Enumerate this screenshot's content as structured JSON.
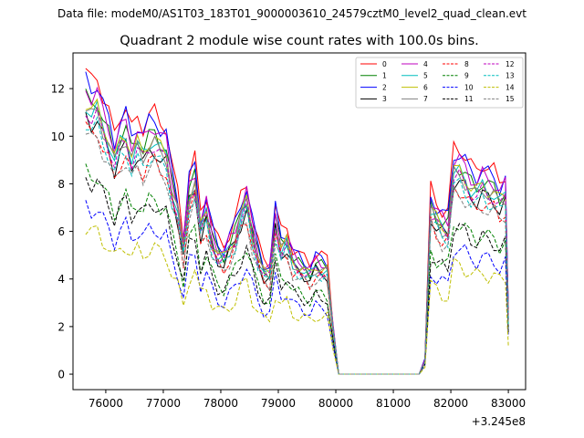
{
  "chart_data": {
    "type": "line",
    "suptitle": "Data file: modeM0/AS1T03_183T01_9000003610_24579cztM0_level2_quad_clean.evt",
    "title": "Quadrant 2 module wise count rates with 100.0s bins.",
    "xlabel": "",
    "ylabel": "",
    "x_offset_label": "+3.245e8",
    "xlim": [
      75430,
      83300
    ],
    "ylim": [
      -0.65,
      13.5
    ],
    "xticks": [
      76000,
      77000,
      78000,
      79000,
      80000,
      81000,
      82000,
      83000
    ],
    "xtick_labels": [
      "76000",
      "77000",
      "78000",
      "79000",
      "80000",
      "81000",
      "82000",
      "83000"
    ],
    "yticks": [
      0,
      2,
      4,
      6,
      8,
      10,
      12
    ],
    "ytick_labels": [
      "0",
      "2",
      "4",
      "6",
      "8",
      "10",
      "12"
    ],
    "grid": false,
    "legend_position": "top-right",
    "x": [
      75650,
      75750,
      75850,
      75950,
      76050,
      76150,
      76250,
      76350,
      76450,
      76550,
      76650,
      76750,
      76850,
      76950,
      77050,
      77150,
      77250,
      77350,
      77450,
      77550,
      77650,
      77750,
      77850,
      77950,
      78050,
      78150,
      78250,
      78350,
      78450,
      78550,
      78650,
      78750,
      78850,
      78950,
      79050,
      79150,
      79250,
      79350,
      79450,
      79550,
      79650,
      79750,
      79850,
      79950,
      80050,
      80150,
      80250,
      80350,
      80450,
      80550,
      80650,
      80750,
      80850,
      80950,
      81050,
      81150,
      81250,
      81350,
      81450,
      81550,
      81650,
      81750,
      81850,
      81950,
      82050,
      82150,
      82250,
      82350,
      82450,
      82550,
      82650,
      82750,
      82850,
      82950,
      83000
    ],
    "base_profile": [
      11.8,
      11.4,
      11.6,
      10.8,
      10.2,
      9.3,
      10.1,
      10.4,
      9.5,
      10.0,
      9.6,
      10.1,
      10.2,
      9.8,
      9.6,
      8.1,
      7.1,
      5.4,
      7.8,
      8.4,
      6.3,
      7.0,
      5.8,
      5.2,
      5.0,
      5.5,
      6.0,
      6.9,
      7.5,
      6.1,
      5.1,
      4.4,
      4.3,
      6.6,
      5.5,
      5.7,
      4.9,
      4.7,
      4.5,
      4.3,
      4.7,
      4.6,
      4.5,
      2.0,
      0.0,
      0.0,
      0.0,
      0.0,
      0.0,
      0.0,
      0.0,
      0.0,
      0.0,
      0.0,
      0.0,
      0.0,
      0.0,
      0.0,
      0.0,
      0.6,
      7.2,
      6.7,
      6.4,
      6.3,
      8.8,
      8.8,
      8.5,
      8.1,
      7.9,
      8.2,
      8.0,
      7.9,
      7.5,
      7.8,
      2.5
    ],
    "series": [
      {
        "name": "0",
        "color": "#ff0000",
        "dash": "solid",
        "scale": 1.08,
        "phase": 0.3
      },
      {
        "name": "1",
        "color": "#008000",
        "dash": "solid",
        "scale": 0.99,
        "phase": 1.1
      },
      {
        "name": "2",
        "color": "#0000ff",
        "dash": "solid",
        "scale": 1.05,
        "phase": 2.0
      },
      {
        "name": "3",
        "color": "#000000",
        "dash": "solid",
        "scale": 0.92,
        "phase": 2.7
      },
      {
        "name": "4",
        "color": "#bf00bf",
        "dash": "solid",
        "scale": 1.02,
        "phase": 3.5
      },
      {
        "name": "5",
        "color": "#00bfbf",
        "dash": "solid",
        "scale": 0.96,
        "phase": 4.2
      },
      {
        "name": "6",
        "color": "#bfbf00",
        "dash": "solid",
        "scale": 0.97,
        "phase": 5.0
      },
      {
        "name": "7",
        "color": "#808080",
        "dash": "solid",
        "scale": 0.95,
        "phase": 5.8
      },
      {
        "name": "8",
        "color": "#ff0000",
        "dash": "dashed",
        "scale": 0.88,
        "phase": 0.7
      },
      {
        "name": "9",
        "color": "#008000",
        "dash": "dashed",
        "scale": 0.72,
        "phase": 1.6
      },
      {
        "name": "10",
        "color": "#0000ff",
        "dash": "dashed",
        "scale": 0.6,
        "phase": 2.4
      },
      {
        "name": "11",
        "color": "#000000",
        "dash": "dashed",
        "scale": 0.7,
        "phase": 3.1
      },
      {
        "name": "12",
        "color": "#bf00bf",
        "dash": "dashed",
        "scale": 0.94,
        "phase": 3.9
      },
      {
        "name": "13",
        "color": "#00bfbf",
        "dash": "dashed",
        "scale": 0.9,
        "phase": 4.6
      },
      {
        "name": "14",
        "color": "#bfbf00",
        "dash": "dashed",
        "scale": 0.52,
        "phase": 5.4
      },
      {
        "name": "15",
        "color": "#808080",
        "dash": "dashed",
        "scale": 0.86,
        "phase": 6.1
      }
    ]
  }
}
